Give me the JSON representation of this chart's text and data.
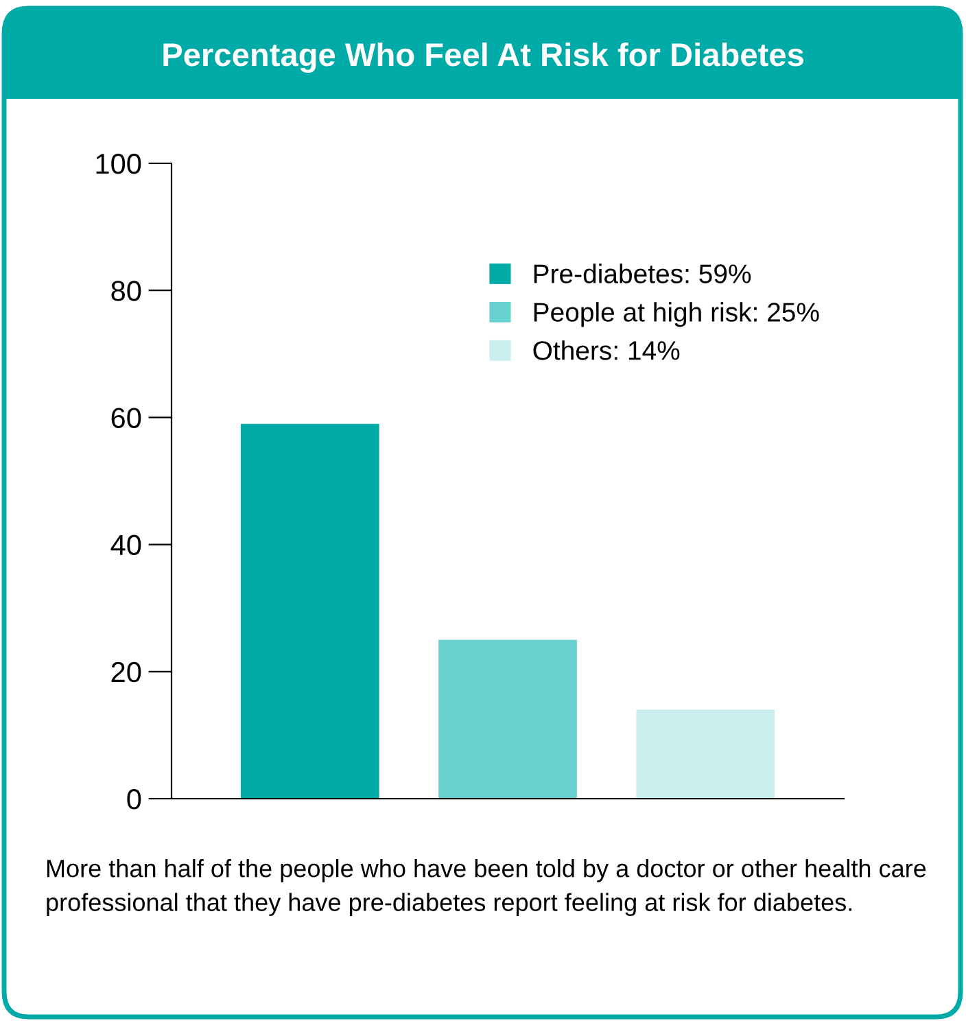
{
  "chart_data": {
    "type": "bar",
    "title": "Percentage Who Feel At Risk for Diabetes",
    "categories": [
      null,
      null,
      null
    ],
    "series": [
      {
        "name": "Pre-diabetes: 59%",
        "color": "#00aaa6",
        "values": [
          59,
          null,
          null
        ]
      },
      {
        "name": "People at high risk: 25%",
        "color": "#66d1cf",
        "values": [
          null,
          25,
          null
        ]
      },
      {
        "name": "Others: 14%",
        "color": "#c8eeee",
        "values": [
          null,
          null,
          14
        ]
      }
    ],
    "ylim": [
      0,
      100
    ],
    "yticks": [
      0,
      20,
      40,
      60,
      80,
      100
    ],
    "grid": false,
    "legend": "top right",
    "annotations": [
      "More than half of the people who have been told by a doctor or other health care professional that they have pre-diabetes report feeling at risk for diabetes."
    ]
  }
}
